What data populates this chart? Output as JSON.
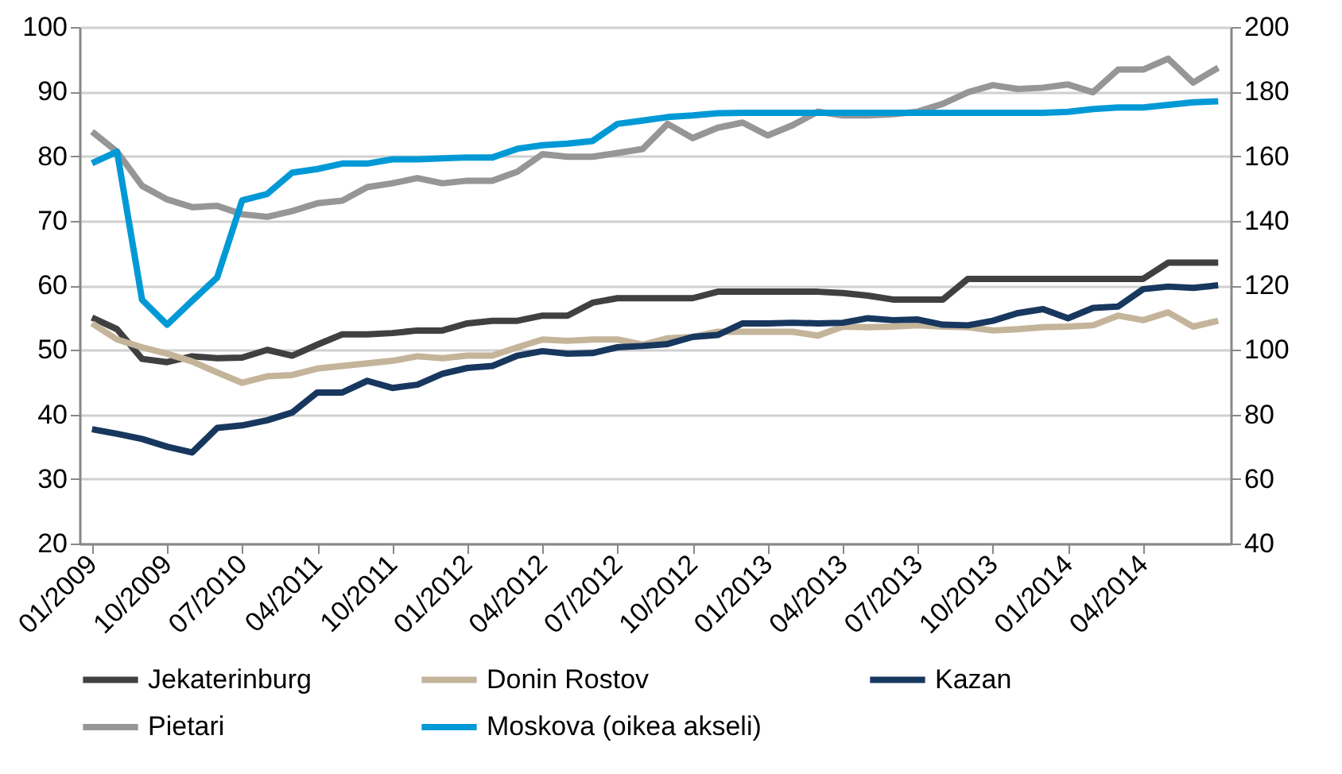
{
  "chart_data": {
    "type": "line",
    "categories": [
      "01/2009",
      null,
      null,
      "10/2009",
      null,
      null,
      "07/2010",
      null,
      null,
      "04/2011",
      null,
      null,
      "10/2011",
      null,
      null,
      "01/2012",
      null,
      null,
      "04/2012",
      null,
      null,
      "07/2012",
      null,
      null,
      "10/2012",
      null,
      null,
      "01/2013",
      null,
      null,
      "04/2013",
      null,
      null,
      "07/2013",
      null,
      null,
      "10/2013",
      null,
      null,
      "01/2014",
      null,
      null,
      "04/2014",
      null,
      null,
      null
    ],
    "series": [
      {
        "name": "Jekaterinburg",
        "color": "#404040",
        "values": [
          55.0,
          53.2,
          48.6,
          48.1,
          49.0,
          48.7,
          48.8,
          50.0,
          49.1,
          50.8,
          52.4,
          52.4,
          52.6,
          53.0,
          53.0,
          54.1,
          54.5,
          54.5,
          55.3,
          55.3,
          57.3,
          58.0,
          58.0,
          58.0,
          58.0,
          59.0,
          59.0,
          59.0,
          59.0,
          59.0,
          58.8,
          58.4,
          57.8,
          57.8,
          57.8,
          61.0,
          61.0,
          61.0,
          61.0,
          61.0,
          61.0,
          61.0,
          61.0,
          63.5,
          63.5,
          63.5
        ]
      },
      {
        "name": "Donin Rostov",
        "color": "#c4b49a",
        "values": [
          54.1,
          51.6,
          50.4,
          49.4,
          48.2,
          46.5,
          44.9,
          45.9,
          46.1,
          47.1,
          47.5,
          47.9,
          48.3,
          49.0,
          48.7,
          49.1,
          49.1,
          50.4,
          51.6,
          51.4,
          51.6,
          51.6,
          50.8,
          51.8,
          52.0,
          52.8,
          52.8,
          52.8,
          52.8,
          52.2,
          53.6,
          53.5,
          53.6,
          53.8,
          53.6,
          53.5,
          53.0,
          53.2,
          53.5,
          53.6,
          53.8,
          55.3,
          54.6,
          55.8,
          53.6,
          54.5
        ]
      },
      {
        "name": "Kazan",
        "color": "#17375e",
        "values": [
          37.7,
          37.0,
          36.2,
          35.0,
          34.1,
          37.9,
          38.3,
          39.1,
          40.3,
          43.4,
          43.4,
          45.2,
          44.1,
          44.6,
          46.3,
          47.2,
          47.5,
          49.1,
          49.8,
          49.4,
          49.5,
          50.4,
          50.6,
          50.9,
          52.0,
          52.3,
          54.1,
          54.1,
          54.2,
          54.1,
          54.2,
          54.9,
          54.6,
          54.7,
          53.9,
          53.8,
          54.5,
          55.7,
          56.3,
          54.9,
          56.5,
          56.7,
          59.4,
          59.8,
          59.6,
          60.0
        ]
      },
      {
        "name": "Pietari",
        "color": "#969696",
        "values": [
          83.8,
          80.7,
          75.4,
          73.3,
          72.1,
          72.3,
          71.0,
          70.6,
          71.5,
          72.7,
          73.1,
          75.2,
          75.8,
          76.6,
          75.8,
          76.2,
          76.2,
          77.6,
          80.3,
          79.9,
          79.9,
          80.5,
          81.1,
          85.0,
          82.8,
          84.4,
          85.2,
          83.2,
          84.8,
          86.9,
          86.3,
          86.3,
          86.5,
          86.9,
          88.1,
          89.9,
          91.0,
          90.4,
          90.6,
          91.1,
          89.9,
          93.4,
          93.4,
          95.1,
          91.4,
          93.7
        ]
      },
      {
        "name": "Moskova (oikea akseli)",
        "color": "#0099d6",
        "axis": "y2",
        "values": [
          157.8,
          161.4,
          115.5,
          107.8,
          115.2,
          122.4,
          146.3,
          148.3,
          154.9,
          156.0,
          157.7,
          157.7,
          159.0,
          159.0,
          159.3,
          159.6,
          159.6,
          162.3,
          163.4,
          163.9,
          164.7,
          170.0,
          171.0,
          172.1,
          172.6,
          173.3,
          173.4,
          173.4,
          173.4,
          173.4,
          173.4,
          173.4,
          173.4,
          173.4,
          173.4,
          173.4,
          173.4,
          173.4,
          173.4,
          173.7,
          174.6,
          175.1,
          175.1,
          175.9,
          176.7,
          177.0
        ]
      }
    ],
    "ylim": [
      20,
      100
    ],
    "yticks": [
      20,
      30,
      40,
      50,
      60,
      70,
      80,
      90,
      100
    ],
    "y2lim": [
      40,
      200
    ],
    "y2ticks": [
      40,
      60,
      80,
      100,
      120,
      140,
      160,
      180,
      200
    ],
    "grid": "y",
    "legend": "bottom",
    "line_style": "solid",
    "marker": "none"
  }
}
